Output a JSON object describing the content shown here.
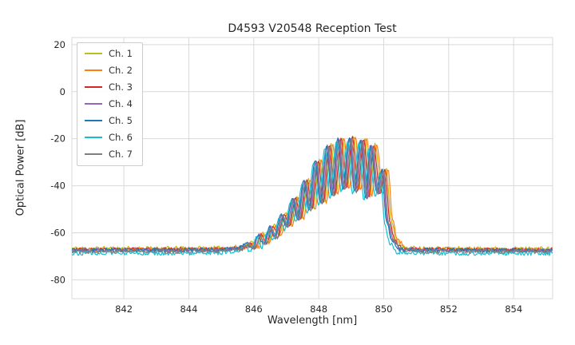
{
  "chart_data": {
    "type": "line",
    "title": "D4593 V20548 Reception Test",
    "xlabel": "Wavelength [nm]",
    "ylabel": "Optical Power [dB]",
    "xlim": [
      840.4,
      855.2
    ],
    "ylim": [
      -88,
      23
    ],
    "xticks": [
      842,
      844,
      846,
      848,
      850,
      852,
      854
    ],
    "yticks": [
      20,
      0,
      -20,
      -40,
      -60,
      -80
    ],
    "grid": true,
    "grid_color": "#d9d9d9",
    "text_color": "#262626",
    "legend_position": "upper-left",
    "baseline_db": -67,
    "peak_db": -19,
    "series": [
      {
        "name": "Ch. 1",
        "color": "#bcbd22",
        "dx": 0.08,
        "dy": 0.4,
        "seed": 11
      },
      {
        "name": "Ch. 2",
        "color": "#ff7f0e",
        "dx": 0.13,
        "dy": 0.0,
        "seed": 22
      },
      {
        "name": "Ch. 3",
        "color": "#d62728",
        "dx": 0.04,
        "dy": -0.2,
        "seed": 33
      },
      {
        "name": "Ch. 4",
        "color": "#9467bd",
        "dx": -0.03,
        "dy": -0.4,
        "seed": 44
      },
      {
        "name": "Ch. 5",
        "color": "#1f77b4",
        "dx": -0.06,
        "dy": -0.3,
        "seed": 55
      },
      {
        "name": "Ch. 6",
        "color": "#17becf",
        "dx": -0.11,
        "dy": -1.6,
        "seed": 66
      },
      {
        "name": "Ch. 7",
        "color": "#7f7f7f",
        "dx": 0.0,
        "dy": -0.8,
        "seed": 77
      }
    ],
    "envelope_points": [
      [
        840.2,
        -67.0
      ],
      [
        843.0,
        -67.0
      ],
      [
        845.0,
        -66.9
      ],
      [
        845.6,
        -66.2
      ],
      [
        845.85,
        -64.5
      ],
      [
        846.0,
        -66.0
      ],
      [
        846.2,
        -60.5
      ],
      [
        846.35,
        -64.5
      ],
      [
        846.55,
        -57.0
      ],
      [
        846.7,
        -61.5
      ],
      [
        846.9,
        -52.0
      ],
      [
        847.05,
        -57.0
      ],
      [
        847.25,
        -45.0
      ],
      [
        847.4,
        -54.0
      ],
      [
        847.6,
        -37.5
      ],
      [
        847.75,
        -50.0
      ],
      [
        847.95,
        -29.0
      ],
      [
        848.1,
        -47.0
      ],
      [
        848.3,
        -22.5
      ],
      [
        848.45,
        -44.0
      ],
      [
        848.65,
        -19.8
      ],
      [
        848.8,
        -41.0
      ],
      [
        849.0,
        -19.2
      ],
      [
        849.15,
        -42.0
      ],
      [
        849.35,
        -20.0
      ],
      [
        849.5,
        -45.0
      ],
      [
        849.65,
        -22.5
      ],
      [
        849.85,
        -43.0
      ],
      [
        850.0,
        -33.0
      ],
      [
        850.15,
        -55.0
      ],
      [
        850.3,
        -63.0
      ],
      [
        850.55,
        -66.8
      ],
      [
        851.5,
        -67.0
      ],
      [
        853.0,
        -67.1
      ],
      [
        855.35,
        -67.2
      ]
    ]
  }
}
